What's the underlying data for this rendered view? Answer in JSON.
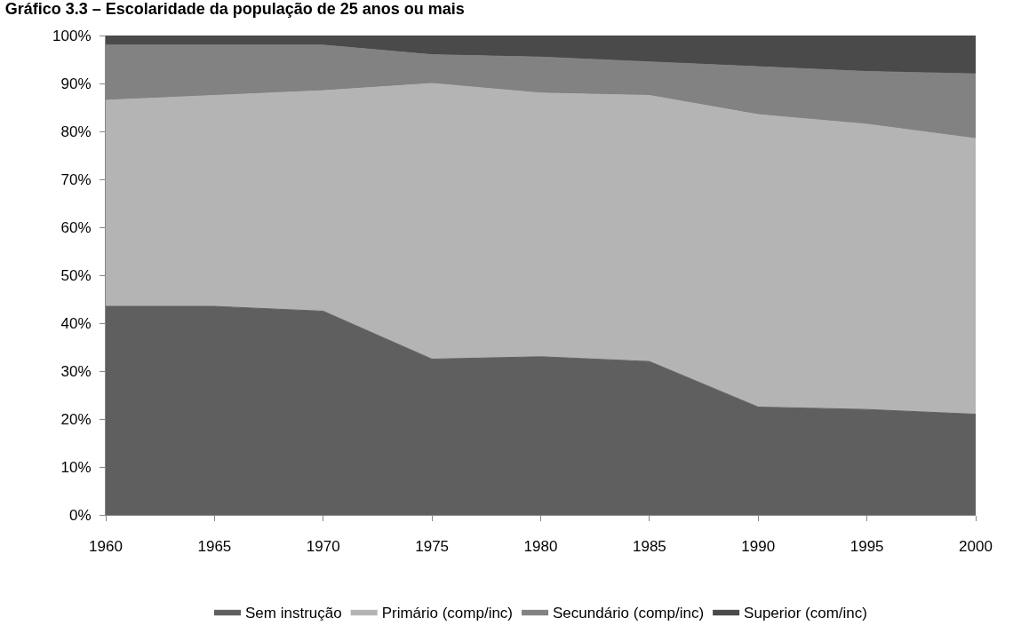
{
  "chart_data": {
    "type": "area",
    "stacked": true,
    "title": "Gráfico 3.3 – Escolaridade da população de 25 anos ou mais",
    "x": [
      1960,
      1965,
      1970,
      1975,
      1980,
      1985,
      1990,
      1995,
      2000
    ],
    "series": [
      {
        "name": "Sem instrução",
        "color": "#5f5f5f",
        "values": [
          43.5,
          43.5,
          42.5,
          32.5,
          33,
          32,
          22.5,
          22,
          21
        ]
      },
      {
        "name": "Primário (comp/inc)",
        "color": "#b4b4b4",
        "values": [
          43,
          44,
          46,
          57.5,
          55,
          55.5,
          61,
          59.5,
          57.5
        ]
      },
      {
        "name": "Secundário (comp/inc)",
        "color": "#828282",
        "values": [
          11.5,
          10.5,
          9.5,
          6,
          7.5,
          7,
          10,
          11,
          13.5
        ]
      },
      {
        "name": "Superior (com/inc)",
        "color": "#4a4a4a",
        "values": [
          2,
          2,
          2,
          4,
          4.5,
          5.5,
          6.5,
          7.5,
          8
        ]
      }
    ],
    "xlim": [
      1960,
      2000
    ],
    "xticks": [
      1960,
      1965,
      1970,
      1975,
      1980,
      1985,
      1990,
      1995,
      2000
    ],
    "ylim": [
      0,
      100
    ],
    "yticks": [
      {
        "value": 0,
        "label": "0%"
      },
      {
        "value": 10,
        "label": "10%"
      },
      {
        "value": 20,
        "label": "20%"
      },
      {
        "value": 30,
        "label": "30%"
      },
      {
        "value": 40,
        "label": "40%"
      },
      {
        "value": 50,
        "label": "50%"
      },
      {
        "value": 60,
        "label": "60%"
      },
      {
        "value": 70,
        "label": "70%"
      },
      {
        "value": 80,
        "label": "80%"
      },
      {
        "value": 90,
        "label": "90%"
      },
      {
        "value": 100,
        "label": "100%"
      }
    ],
    "legend": "bottom",
    "marker": "none"
  }
}
